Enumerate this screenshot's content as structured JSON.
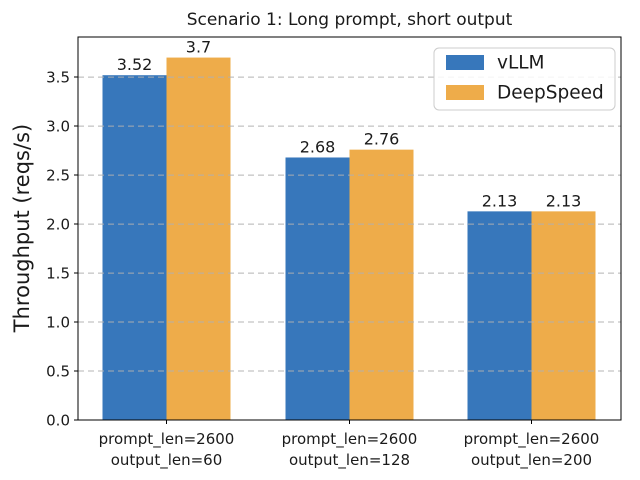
{
  "chart_data": {
    "type": "bar",
    "title": "Scenario 1: Long prompt, short output",
    "ylabel": "Throughput (reqs/s)",
    "xlabel": "",
    "categories": [
      [
        "prompt_len=2600",
        "output_len=60"
      ],
      [
        "prompt_len=2600",
        "output_len=128"
      ],
      [
        "prompt_len=2600",
        "output_len=200"
      ]
    ],
    "series": [
      {
        "name": "vLLM",
        "color": "#3777bb",
        "values": [
          3.52,
          2.68,
          2.13
        ],
        "labels": [
          "3.52",
          "2.68",
          "2.13"
        ]
      },
      {
        "name": "DeepSpeed",
        "color": "#eeac4a",
        "values": [
          3.7,
          2.76,
          2.13
        ],
        "labels": [
          "3.7",
          "2.76",
          "2.13"
        ]
      }
    ],
    "ylim": [
      0,
      3.91
    ],
    "ytick_values": [
      0,
      0.5,
      1.0,
      1.5,
      2.0,
      2.5,
      3.0,
      3.5
    ],
    "ytick_labels": [
      "0.0",
      "0.5",
      "1.0",
      "1.5",
      "2.0",
      "2.5",
      "3.0",
      "3.5"
    ],
    "grid": {
      "axis": "y",
      "style": "dashed",
      "color": "#b0b0b0",
      "on_top_of_bars": true
    },
    "legend": {
      "position": "upper right",
      "entries": [
        "vLLM",
        "DeepSpeed"
      ],
      "border_color": "#cccccc",
      "background": "#ffffff"
    },
    "spine_color": "#000000",
    "text_color": "#1a1a1a",
    "background": "#ffffff"
  }
}
